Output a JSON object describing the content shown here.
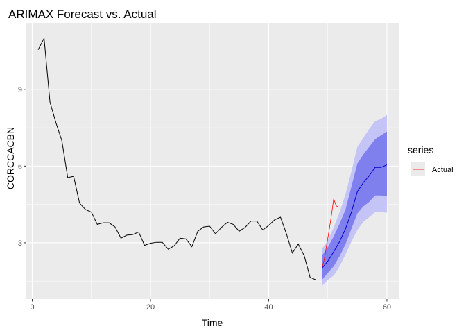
{
  "chart_data": {
    "type": "line",
    "title": "ARIMAX Forecast vs. Actual",
    "xlabel": "Time",
    "ylabel": "CORCCACBN",
    "xlim": [
      -1,
      62
    ],
    "ylim": [
      0.8,
      11.6
    ],
    "x_ticks": [
      0,
      20,
      40,
      60
    ],
    "y_ticks": [
      3,
      6,
      9
    ],
    "grid": true,
    "colors": {
      "panel": "#ebebeb",
      "grid_major": "#ffffff",
      "history": "#000000",
      "forecast": "#0000cd",
      "band80": "#7f7fee",
      "band95": "#c4c4f7",
      "actual": "#ff0000",
      "legend_key_bg": "#ebebeb"
    },
    "history": {
      "x": [
        1,
        2,
        3,
        4,
        5,
        6,
        7,
        8,
        9,
        10,
        11,
        12,
        13,
        14,
        15,
        16,
        17,
        18,
        19,
        20,
        21,
        22,
        23,
        24,
        25,
        26,
        27,
        28,
        29,
        30,
        31,
        32,
        33,
        34,
        35,
        36,
        37,
        38,
        39,
        40,
        41,
        42,
        43,
        44,
        45,
        46,
        47,
        48
      ],
      "y": [
        10.55,
        11.0,
        8.5,
        7.7,
        7.0,
        5.55,
        5.6,
        4.55,
        4.3,
        4.2,
        3.72,
        3.78,
        3.78,
        3.62,
        3.18,
        3.3,
        3.32,
        3.42,
        2.9,
        2.98,
        3.02,
        3.02,
        2.75,
        2.88,
        3.18,
        3.15,
        2.85,
        3.45,
        3.62,
        3.65,
        3.35,
        3.6,
        3.8,
        3.72,
        3.45,
        3.6,
        3.85,
        3.85,
        3.5,
        3.68,
        3.9,
        4.0,
        3.35,
        2.6,
        2.95,
        2.5,
        1.65,
        1.55
      ]
    },
    "forecast": {
      "x": [
        49,
        50,
        51,
        52,
        53,
        54,
        55,
        56,
        57,
        58,
        59,
        60
      ],
      "mean": [
        2.0,
        2.28,
        2.65,
        3.05,
        3.55,
        4.2,
        5.0,
        5.35,
        5.62,
        5.95,
        5.95,
        6.05
      ],
      "lo80": [
        1.55,
        1.82,
        2.08,
        2.48,
        2.95,
        3.55,
        4.15,
        4.42,
        4.6,
        4.85,
        4.85,
        4.82
      ],
      "hi80": [
        2.5,
        2.82,
        3.25,
        3.75,
        4.3,
        5.2,
        6.1,
        6.45,
        6.75,
        7.05,
        7.2,
        7.35
      ],
      "lo95": [
        1.3,
        1.55,
        1.72,
        2.08,
        2.55,
        3.05,
        3.5,
        3.82,
        4.0,
        4.2,
        4.2,
        4.18
      ],
      "hi95": [
        2.75,
        3.1,
        3.6,
        4.2,
        4.9,
        5.8,
        6.75,
        7.1,
        7.45,
        7.75,
        7.85,
        8.0
      ]
    },
    "series": [
      {
        "name": "Actual",
        "x": [
          49,
          49.4,
          49.8,
          50.2,
          50.6,
          51.0,
          51.4,
          51.7
        ],
        "y": [
          2.0,
          2.35,
          2.9,
          3.45,
          4.05,
          4.72,
          4.45,
          4.4
        ]
      }
    ],
    "legend": {
      "title": "series",
      "position": "right",
      "entries": [
        {
          "label": "Actual",
          "color": "#ff0000"
        }
      ]
    }
  }
}
